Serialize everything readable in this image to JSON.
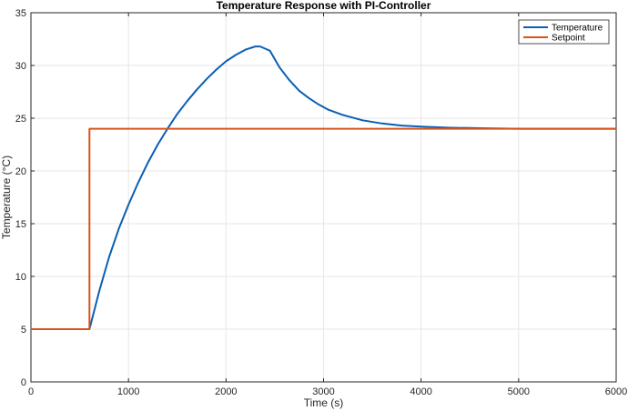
{
  "chart_data": {
    "type": "line",
    "title": "Temperature Response with PI-Controller",
    "xlabel": "Time (s)",
    "ylabel": "Temperature (°C)",
    "xlim": [
      0,
      6000
    ],
    "ylim": [
      0,
      35
    ],
    "x_ticks": [
      0,
      1000,
      2000,
      3000,
      4000,
      5000,
      6000
    ],
    "y_ticks": [
      0,
      5,
      10,
      15,
      20,
      25,
      30,
      35
    ],
    "grid": true,
    "legend_position": "top-right",
    "series": [
      {
        "name": "Temperature",
        "color": "#0a5fb4",
        "x": [
          0,
          600,
          700,
          800,
          900,
          1000,
          1100,
          1200,
          1300,
          1400,
          1500,
          1600,
          1700,
          1800,
          1900,
          2000,
          2100,
          2200,
          2300,
          2350,
          2450,
          2550,
          2650,
          2750,
          2850,
          2950,
          3050,
          3200,
          3400,
          3600,
          3800,
          4000,
          4300,
          4600,
          5000,
          5500,
          6000
        ],
        "y": [
          5,
          5,
          8.6,
          11.8,
          14.5,
          16.8,
          18.9,
          20.8,
          22.5,
          24.0,
          25.4,
          26.6,
          27.7,
          28.7,
          29.6,
          30.4,
          31.0,
          31.5,
          31.8,
          31.8,
          31.4,
          29.8,
          28.6,
          27.6,
          26.9,
          26.3,
          25.8,
          25.3,
          24.8,
          24.5,
          24.3,
          24.2,
          24.1,
          24.05,
          24.0,
          24.0,
          24.0
        ]
      },
      {
        "name": "Setpoint",
        "color": "#d95319",
        "x": [
          0,
          600,
          600,
          6000
        ],
        "y": [
          5,
          5,
          24,
          24
        ]
      }
    ]
  }
}
